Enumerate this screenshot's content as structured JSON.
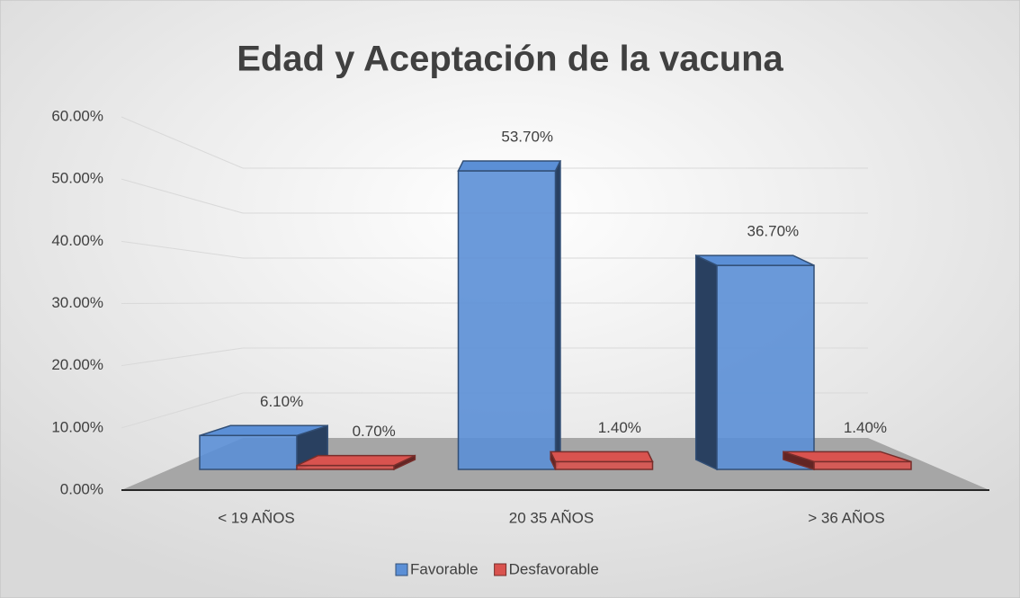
{
  "chart_data": {
    "type": "bar3d",
    "title": "Edad y Aceptación de la vacuna",
    "categories": [
      "< 19 AÑOS",
      "20 35 AÑOS",
      "> 36 AÑOS"
    ],
    "series": [
      {
        "name": "Favorable",
        "color": "#5b8fd6",
        "values": [
          6.1,
          53.7,
          36.7
        ],
        "value_labels": [
          "6.10%",
          "53.70%",
          "36.70%"
        ]
      },
      {
        "name": "Desfavorable",
        "color": "#d9534f",
        "values": [
          0.7,
          1.4,
          1.4
        ],
        "value_labels": [
          "0.70%",
          "1.40%",
          "1.40%"
        ]
      }
    ],
    "ylim": [
      0,
      60
    ],
    "yticks": [
      {
        "value": 0,
        "label": "0.00%"
      },
      {
        "value": 10,
        "label": "10.00%"
      },
      {
        "value": 20,
        "label": "20.00%"
      },
      {
        "value": 30,
        "label": "30.00%"
      },
      {
        "value": 40,
        "label": "40.00%"
      },
      {
        "value": 50,
        "label": "50.00%"
      },
      {
        "value": 60,
        "label": "60.00%"
      }
    ],
    "grid": true,
    "legend": "bottom"
  }
}
